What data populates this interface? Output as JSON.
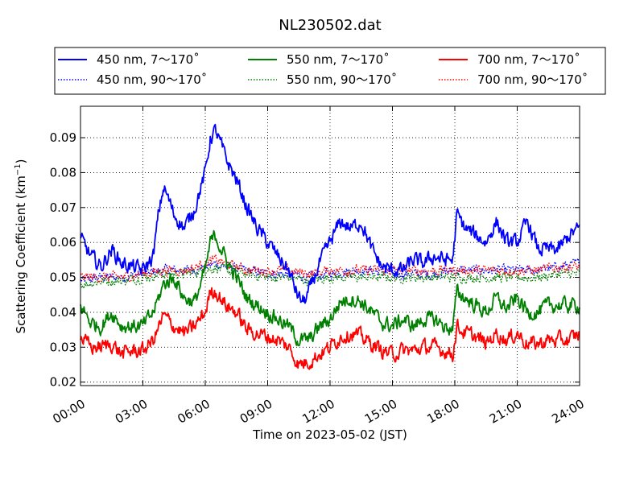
{
  "chart_data": {
    "type": "line",
    "title": "NL230502.dat",
    "xlabel": "Time on 2023-05-02 (JST)",
    "ylabel_main": "Scattering Coefficient (km",
    "ylabel_exp": "−1",
    "ylabel_close": ")",
    "xlim": [
      0,
      24
    ],
    "ylim": [
      0.019,
      0.099
    ],
    "x_ticks": [
      0,
      3,
      6,
      9,
      12,
      15,
      18,
      21,
      24
    ],
    "x_tick_labels": [
      "00:00",
      "03:00",
      "06:00",
      "09:00",
      "12:00",
      "15:00",
      "18:00",
      "21:00",
      "24:00"
    ],
    "y_ticks": [
      0.02,
      0.03,
      0.04,
      0.05,
      0.06,
      0.07,
      0.08,
      0.09
    ],
    "y_tick_labels": [
      "0.02",
      "0.03",
      "0.04",
      "0.05",
      "0.06",
      "0.07",
      "0.08",
      "0.09"
    ],
    "grid": true,
    "legend_position": "top, above plot, 3 columns",
    "series": [
      {
        "name": "450 nm, 7～170˚",
        "color": "#0000ff",
        "style": "solid",
        "x": [
          0,
          0.5,
          1,
          1.5,
          2,
          2.5,
          3,
          3.5,
          3.75,
          4,
          4.25,
          4.5,
          5,
          5.5,
          6,
          6.25,
          6.5,
          7,
          7.5,
          8,
          8.5,
          9,
          9.5,
          10,
          10.5,
          10.75,
          11,
          11.5,
          12,
          12.5,
          13,
          13.5,
          14,
          14.5,
          15,
          15.5,
          16,
          16.5,
          17,
          17.5,
          17.9,
          18.1,
          18.5,
          19,
          19.5,
          20,
          20.5,
          21,
          21.5,
          22,
          22.5,
          23,
          23.5,
          24
        ],
        "y": [
          0.061,
          0.056,
          0.053,
          0.058,
          0.054,
          0.053,
          0.052,
          0.056,
          0.068,
          0.076,
          0.072,
          0.068,
          0.064,
          0.07,
          0.08,
          0.09,
          0.092,
          0.084,
          0.078,
          0.07,
          0.064,
          0.06,
          0.056,
          0.052,
          0.044,
          0.043,
          0.046,
          0.054,
          0.06,
          0.066,
          0.064,
          0.066,
          0.058,
          0.053,
          0.052,
          0.052,
          0.055,
          0.054,
          0.056,
          0.055,
          0.055,
          0.068,
          0.064,
          0.062,
          0.06,
          0.066,
          0.06,
          0.06,
          0.066,
          0.058,
          0.058,
          0.058,
          0.062,
          0.064
        ]
      },
      {
        "name": "450 nm, 90～170˚",
        "color": "#0000ff",
        "style": "dotted",
        "x": [
          0,
          1,
          2,
          3,
          4,
          5,
          6,
          6.5,
          7,
          8,
          9,
          10,
          11,
          12,
          13,
          14,
          15,
          16,
          17,
          18,
          19,
          20,
          21,
          22,
          23,
          24
        ],
        "y": [
          0.049,
          0.05,
          0.05,
          0.051,
          0.052,
          0.052,
          0.053,
          0.054,
          0.053,
          0.052,
          0.051,
          0.051,
          0.05,
          0.051,
          0.052,
          0.052,
          0.051,
          0.051,
          0.051,
          0.052,
          0.052,
          0.052,
          0.052,
          0.052,
          0.053,
          0.054
        ]
      },
      {
        "name": "550 nm, 7～170˚",
        "color": "#008000",
        "style": "solid",
        "x": [
          0,
          0.5,
          1,
          1.5,
          2,
          2.5,
          3,
          3.5,
          4,
          4.5,
          5,
          5.5,
          6,
          6.25,
          6.5,
          7,
          7.5,
          8,
          8.5,
          9,
          9.5,
          10,
          10.5,
          11,
          11.5,
          12,
          12.5,
          13,
          13.5,
          14,
          14.5,
          15,
          15.5,
          16,
          16.5,
          17,
          17.5,
          17.9,
          18.1,
          18.5,
          19,
          19.5,
          20,
          20.5,
          21,
          21.5,
          22,
          22.5,
          23,
          23.5,
          24
        ],
        "y": [
          0.042,
          0.037,
          0.036,
          0.04,
          0.036,
          0.036,
          0.036,
          0.04,
          0.048,
          0.05,
          0.044,
          0.043,
          0.052,
          0.06,
          0.062,
          0.055,
          0.05,
          0.044,
          0.042,
          0.04,
          0.038,
          0.036,
          0.032,
          0.032,
          0.036,
          0.038,
          0.043,
          0.044,
          0.043,
          0.04,
          0.037,
          0.036,
          0.038,
          0.036,
          0.038,
          0.038,
          0.036,
          0.035,
          0.046,
          0.044,
          0.042,
          0.04,
          0.044,
          0.041,
          0.044,
          0.04,
          0.04,
          0.042,
          0.042,
          0.042,
          0.042
        ]
      },
      {
        "name": "550 nm, 90～170˚",
        "color": "#008000",
        "style": "dotted",
        "x": [
          0,
          1,
          2,
          3,
          4,
          5,
          6,
          6.5,
          7,
          8,
          9,
          10,
          11,
          12,
          13,
          14,
          15,
          16,
          17,
          18,
          19,
          20,
          21,
          22,
          23,
          24
        ],
        "y": [
          0.048,
          0.049,
          0.049,
          0.05,
          0.051,
          0.051,
          0.052,
          0.053,
          0.052,
          0.051,
          0.05,
          0.05,
          0.049,
          0.05,
          0.05,
          0.05,
          0.05,
          0.05,
          0.05,
          0.05,
          0.05,
          0.05,
          0.05,
          0.05,
          0.051,
          0.051
        ]
      },
      {
        "name": "700 nm, 7～170˚",
        "color": "#ff0000",
        "style": "solid",
        "x": [
          0,
          0.5,
          1,
          1.5,
          2,
          2.5,
          3,
          3.5,
          4,
          4.5,
          5,
          5.5,
          6,
          6.25,
          6.5,
          7,
          7.5,
          8,
          8.5,
          9,
          9.5,
          10,
          10.5,
          11,
          11.5,
          12,
          12.5,
          13,
          13.5,
          14,
          14.5,
          15,
          15.5,
          16,
          16.5,
          17,
          17.5,
          17.9,
          18.1,
          18.5,
          19,
          19.5,
          20,
          20.5,
          21,
          21.5,
          22,
          22.5,
          23,
          23.5,
          24
        ],
        "y": [
          0.033,
          0.03,
          0.03,
          0.031,
          0.028,
          0.029,
          0.029,
          0.032,
          0.039,
          0.036,
          0.034,
          0.036,
          0.04,
          0.046,
          0.046,
          0.042,
          0.04,
          0.035,
          0.034,
          0.033,
          0.032,
          0.03,
          0.025,
          0.026,
          0.028,
          0.03,
          0.033,
          0.034,
          0.033,
          0.031,
          0.029,
          0.028,
          0.029,
          0.029,
          0.03,
          0.03,
          0.029,
          0.028,
          0.036,
          0.034,
          0.033,
          0.031,
          0.034,
          0.032,
          0.034,
          0.031,
          0.031,
          0.032,
          0.032,
          0.032,
          0.034
        ]
      },
      {
        "name": "700 nm, 90～170˚",
        "color": "#ff0000",
        "style": "dotted",
        "x": [
          0,
          1,
          2,
          3,
          4,
          5,
          6,
          6.5,
          7,
          8,
          9,
          10,
          11,
          12,
          13,
          14,
          15,
          16,
          17,
          18,
          19,
          20,
          21,
          22,
          23,
          24
        ],
        "y": [
          0.05,
          0.05,
          0.05,
          0.051,
          0.052,
          0.052,
          0.054,
          0.055,
          0.054,
          0.052,
          0.052,
          0.052,
          0.051,
          0.052,
          0.052,
          0.052,
          0.052,
          0.052,
          0.052,
          0.052,
          0.052,
          0.052,
          0.052,
          0.052,
          0.053,
          0.053
        ]
      }
    ]
  }
}
